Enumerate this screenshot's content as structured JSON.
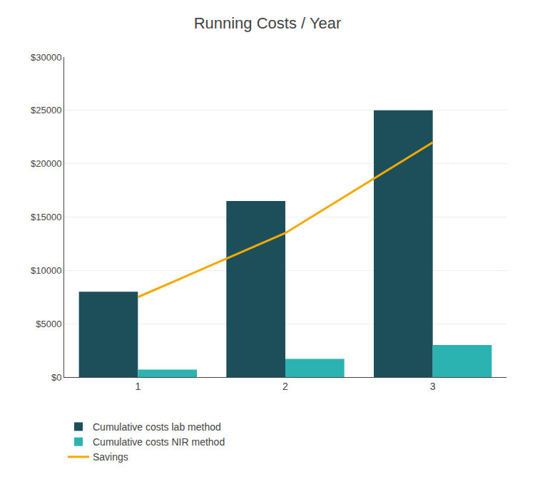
{
  "chart_data": {
    "type": "bar",
    "title": "Running Costs / Year",
    "x": [
      1,
      2,
      3
    ],
    "series": [
      {
        "name": "Cumulative costs lab method",
        "type": "bar",
        "color": "#1c4f5a",
        "values": [
          8000,
          16500,
          25000
        ]
      },
      {
        "name": "Cumulative costs NIR method",
        "type": "bar",
        "color": "#2ab3b0",
        "values": [
          700,
          1700,
          3000
        ]
      },
      {
        "name": "Savings",
        "type": "line",
        "color": "#f5a800",
        "values": [
          7500,
          13500,
          22000
        ]
      }
    ],
    "xlim": [
      0.5,
      3.5
    ],
    "xticks": [
      1,
      2,
      3
    ],
    "ylim": [
      0,
      30000
    ],
    "yticks": [
      {
        "value": 0,
        "label": "$0"
      },
      {
        "value": 5000,
        "label": "$5000"
      },
      {
        "value": 10000,
        "label": "$10000"
      },
      {
        "value": 15000,
        "label": "$15000"
      },
      {
        "value": 20000,
        "label": "$20000"
      },
      {
        "value": 25000,
        "label": "$25000"
      },
      {
        "value": 30000,
        "label": "$30000"
      }
    ],
    "grid": true,
    "legend": "bottom"
  }
}
